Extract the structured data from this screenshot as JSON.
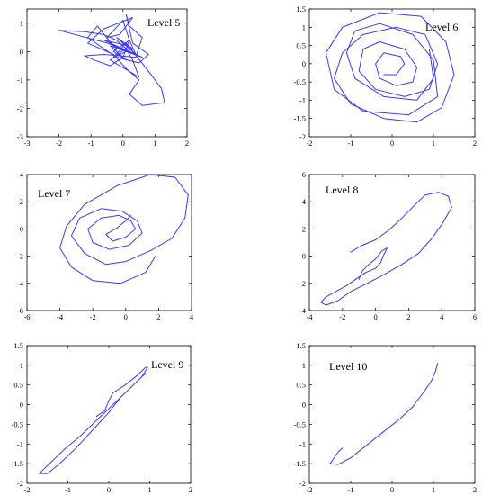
{
  "chart_data": [
    {
      "type": "line",
      "title": "Level 5",
      "xlim": [
        -3,
        2
      ],
      "ylim": [
        -3,
        1.5
      ],
      "xticks": [
        "-3",
        "-2",
        "-1",
        "0",
        "1",
        "2"
      ],
      "yticks": [
        "-3",
        "-2",
        "-1",
        "0",
        "1"
      ],
      "grid": false,
      "series": [
        {
          "color": "#3a3ae8",
          "x": [
            -2.0,
            -1.2,
            -0.6,
            -0.2,
            0.1,
            0.3,
            0.5,
            -0.4,
            0.2,
            -0.6,
            0.4,
            -0.2,
            0.3,
            -0.3,
            0.1,
            0.8,
            1.2,
            1.3,
            0.6,
            0.2,
            0.5,
            0.1,
            -0.3,
            -1.1,
            -0.6,
            0.3,
            -0.1,
            -0.5,
            0.0,
            0.2,
            0.0,
            -0.4,
            -0.9,
            -1.2,
            -0.6,
            0.4,
            0.6,
            0.2,
            0.1,
            0.3,
            0.8,
            0.5,
            -0.2,
            -0.6,
            -1.1,
            -0.8,
            -0.3,
            0.4,
            0.2,
            -0.3,
            0.1,
            -0.4,
            0.6,
            0.0,
            -0.5,
            -2.0
          ],
          "y": [
            0.75,
            0.7,
            0.6,
            0.4,
            0.1,
            -0.3,
            -0.9,
            -0.3,
            0.2,
            0.4,
            -0.1,
            0.5,
            0.1,
            -0.2,
            0.3,
            -0.7,
            -1.3,
            -1.8,
            -1.9,
            -1.5,
            -1.0,
            -0.6,
            -0.1,
            0.3,
            0.8,
            1.2,
            0.6,
            0.5,
            1.1,
            0.4,
            -0.2,
            -0.5,
            -0.3,
            -0.15,
            -0.1,
            -0.2,
            0.5,
            0.9,
            1.3,
            0.3,
            -0.1,
            -0.4,
            -0.2,
            0.1,
            0.5,
            0.9,
            0.2,
            -0.1,
            0.4,
            0.0,
            -0.3,
            0.2,
            -0.2,
            0.1,
            0.3,
            0.75
          ]
        }
      ]
    },
    {
      "type": "line",
      "title": "Level 6",
      "xlim": [
        -2,
        2
      ],
      "ylim": [
        -2,
        1.5
      ],
      "xticks": [
        "-2",
        "-1",
        "0",
        "1",
        "2"
      ],
      "yticks": [
        "-2",
        "-1.5",
        "-1",
        "-0.5",
        "0",
        "0.5",
        "1",
        "1.5"
      ],
      "grid": false,
      "series": [
        {
          "color": "#3a3ae8",
          "x": [
            -0.2,
            0.1,
            0.3,
            0.2,
            -0.2,
            -0.4,
            -0.3,
            0.1,
            0.5,
            0.6,
            0.3,
            -0.3,
            -0.7,
            -0.8,
            -0.4,
            0.3,
            0.9,
            1.1,
            0.8,
            0.1,
            -0.7,
            -1.2,
            -1.4,
            -1.0,
            -0.2,
            0.6,
            1.2,
            1.5,
            1.3,
            0.7,
            -0.3,
            -1.2,
            -1.6,
            -1.4,
            -0.7,
            0.4,
            1.1,
            1.0,
            0.5,
            -0.3,
            -0.9,
            -1.1,
            -0.9,
            -0.2,
            0.6,
            1.0,
            0.9
          ],
          "y": [
            -0.3,
            -0.3,
            0.0,
            0.2,
            0.3,
            0.0,
            -0.4,
            -0.6,
            -0.5,
            -0.1,
            0.4,
            0.6,
            0.4,
            -0.2,
            -0.7,
            -0.9,
            -0.7,
            0.0,
            0.8,
            1.0,
            0.8,
            0.3,
            -0.4,
            -1.1,
            -1.5,
            -1.6,
            -1.2,
            -0.3,
            0.6,
            1.3,
            1.4,
            1.0,
            0.3,
            -0.7,
            -1.3,
            -1.4,
            -0.9,
            0.1,
            0.8,
            1.1,
            0.9,
            0.3,
            -0.4,
            -0.9,
            -1.0,
            -0.4,
            0.4
          ]
        }
      ]
    },
    {
      "type": "line",
      "title": "Level 7",
      "xlim": [
        -6,
        4
      ],
      "ylim": [
        -6,
        4
      ],
      "xticks": [
        "-6",
        "-4",
        "-2",
        "0",
        "2",
        "4"
      ],
      "yticks": [
        "-6",
        "-4",
        "-2",
        "0",
        "2",
        "4"
      ],
      "grid": false,
      "series": [
        {
          "color": "#3a3ae8",
          "x": [
            0.3,
            0.0,
            -0.5,
            -1.2,
            -0.8,
            0.0,
            0.6,
            0.3,
            -0.4,
            -1.5,
            -2.3,
            -2.0,
            -1.0,
            0.2,
            1.0,
            0.7,
            -0.2,
            -1.5,
            -2.8,
            -3.3,
            -2.5,
            -1.2,
            0.0,
            1.5,
            2.8,
            3.6,
            3.8,
            3.0,
            1.5,
            -0.5,
            -2.5,
            -3.6,
            -4.0,
            -3.3,
            -2.0,
            -0.3,
            1.2,
            1.8
          ],
          "y": [
            1.0,
            0.6,
            0.1,
            -0.4,
            -0.9,
            -0.6,
            0.0,
            0.6,
            1.0,
            0.8,
            0.0,
            -1.0,
            -1.5,
            -1.2,
            -0.3,
            0.6,
            1.3,
            1.5,
            0.8,
            -0.5,
            -1.8,
            -2.6,
            -2.4,
            -1.6,
            -0.7,
            0.8,
            2.5,
            3.8,
            4.0,
            3.2,
            1.8,
            0.2,
            -1.4,
            -2.8,
            -3.8,
            -4.0,
            -3.2,
            -2.0
          ]
        }
      ]
    },
    {
      "type": "line",
      "title": "Level 8",
      "xlim": [
        -4,
        6
      ],
      "ylim": [
        -4,
        6
      ],
      "xticks": [
        "-4",
        "-2",
        "0",
        "2",
        "4",
        "6"
      ],
      "yticks": [
        "-4",
        "-2",
        "0",
        "2",
        "4",
        "6"
      ],
      "grid": false,
      "series": [
        {
          "color": "#3a3ae8",
          "x": [
            -1.0,
            -0.8,
            -0.5,
            0.0,
            0.4,
            0.7,
            0.5,
            0.3,
            0.0,
            -0.6,
            -1.2,
            -1.8,
            -2.4,
            -3.0,
            -3.3,
            -3.0,
            -2.3,
            -1.5,
            -0.5,
            0.6,
            1.6,
            2.6,
            3.4,
            4.1,
            4.6,
            4.4,
            3.8,
            3.0,
            2.4,
            1.6,
            0.8,
            0.0,
            -0.8,
            -1.5
          ],
          "y": [
            -1.7,
            -1.1,
            -0.7,
            -0.2,
            0.4,
            0.6,
            0.1,
            -0.5,
            -0.9,
            -1.2,
            -1.7,
            -2.2,
            -2.6,
            -3.0,
            -3.4,
            -3.6,
            -3.3,
            -2.6,
            -2.0,
            -1.3,
            -0.6,
            0.2,
            1.3,
            2.5,
            3.6,
            4.4,
            4.7,
            4.5,
            3.8,
            2.8,
            1.9,
            1.2,
            0.8,
            0.3
          ]
        }
      ]
    },
    {
      "type": "line",
      "title": "Level 9",
      "xlim": [
        -2,
        2
      ],
      "ylim": [
        -2,
        1.5
      ],
      "xticks": [
        "-2",
        "-1",
        "0",
        "1",
        "2"
      ],
      "yticks": [
        "-2",
        "-1.5",
        "-1",
        "-0.5",
        "0",
        "0.5",
        "1",
        "1.5"
      ],
      "grid": false,
      "series": [
        {
          "color": "#3a3ae8",
          "x": [
            -0.3,
            -0.1,
            0.0,
            0.1,
            0.4,
            0.7,
            0.9,
            0.95,
            0.8,
            0.5,
            0.1,
            -0.3,
            -0.7,
            -1.1,
            -1.4,
            -1.6,
            -1.7,
            -1.5,
            -1.2,
            -0.8,
            -0.4,
            0.0,
            0.3,
            0.6,
            0.9
          ],
          "y": [
            -0.3,
            -0.15,
            0.1,
            0.3,
            0.5,
            0.75,
            0.95,
            0.95,
            0.7,
            0.4,
            0.0,
            -0.4,
            -0.8,
            -1.15,
            -1.45,
            -1.65,
            -1.75,
            -1.75,
            -1.5,
            -1.1,
            -0.65,
            -0.2,
            0.2,
            0.5,
            0.8
          ]
        }
      ]
    },
    {
      "type": "line",
      "title": "Level 10",
      "xlim": [
        -2,
        2
      ],
      "ylim": [
        -2,
        1.5
      ],
      "xticks": [
        "-2",
        "-1",
        "0",
        "1",
        "2"
      ],
      "yticks": [
        "-2",
        "-1.5",
        "-1",
        "-0.5",
        "0",
        "0.5",
        "1",
        "1.5"
      ],
      "grid": false,
      "series": [
        {
          "color": "#3a3ae8",
          "x": [
            -1.2,
            -1.3,
            -1.4,
            -1.5,
            -1.3,
            -1.0,
            -0.7,
            -0.4,
            -0.1,
            0.2,
            0.5,
            0.75,
            0.95,
            1.05,
            1.1
          ],
          "y": [
            -1.1,
            -1.2,
            -1.35,
            -1.5,
            -1.52,
            -1.35,
            -1.1,
            -0.85,
            -0.6,
            -0.35,
            -0.05,
            0.3,
            0.6,
            0.85,
            1.05
          ]
        }
      ]
    }
  ]
}
